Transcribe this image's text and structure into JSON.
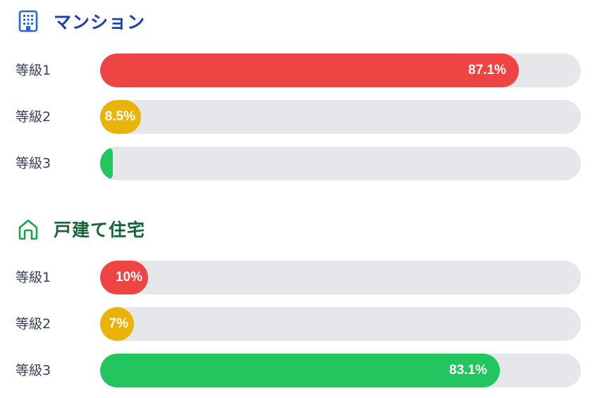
{
  "chart_data": [
    {
      "type": "bar",
      "orientation": "horizontal",
      "title": "マンション",
      "icon": "building-icon",
      "title_color": "#1e40af",
      "categories": [
        "等級1",
        "等級2",
        "等級3"
      ],
      "values": [
        87.1,
        8.5,
        2.5
      ],
      "value_labels": [
        "87.1%",
        "8.5%",
        ""
      ],
      "colors": [
        "#ef4444",
        "#eab308",
        "#22c55e"
      ],
      "xlim": [
        0,
        100
      ],
      "track_color": "#e5e7eb"
    },
    {
      "type": "bar",
      "orientation": "horizontal",
      "title": "戸建て住宅",
      "icon": "house-icon",
      "title_color": "#166534",
      "categories": [
        "等級1",
        "等級2",
        "等級3"
      ],
      "values": [
        10,
        7,
        83.1
      ],
      "value_labels": [
        "10%",
        "7%",
        "83.1%"
      ],
      "colors": [
        "#ef4444",
        "#eab308",
        "#22c55e"
      ],
      "xlim": [
        0,
        100
      ],
      "track_color": "#e5e7eb"
    }
  ]
}
